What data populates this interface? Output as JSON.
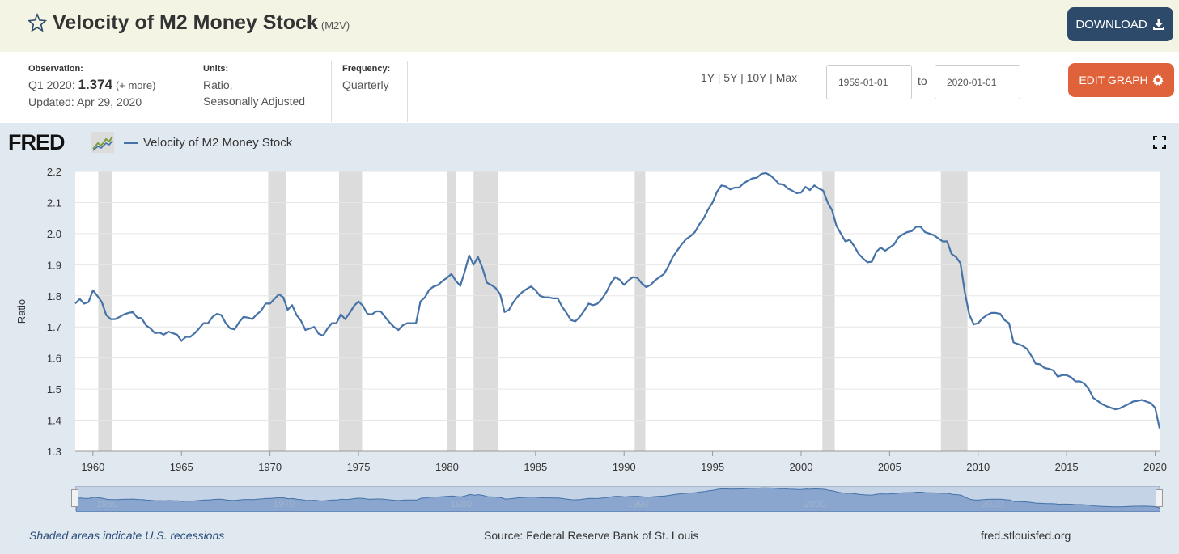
{
  "header": {
    "title": "Velocity of M2 Money Stock",
    "code": "(M2V)",
    "download_label": "DOWNLOAD"
  },
  "meta": {
    "observation_label": "Observation:",
    "observation_period": "Q1 2020:",
    "observation_value": "1.374",
    "observation_more": "(+ more)",
    "updated": "Updated: Apr 29, 2020",
    "units_label": "Units:",
    "units_line1": "Ratio,",
    "units_line2": "Seasonally Adjusted",
    "frequency_label": "Frequency:",
    "frequency_value": "Quarterly"
  },
  "range": {
    "links": [
      "1Y",
      "5Y",
      "10Y",
      "Max"
    ],
    "separator": "|",
    "from": "1959-01-01",
    "to_label": "to",
    "to": "2020-01-01",
    "edit_label": "EDIT GRAPH"
  },
  "legend": {
    "logo": "FRED",
    "series": "Velocity of M2 Money Stock"
  },
  "footer": {
    "note": "Shaded areas indicate U.S. recessions",
    "source": "Source: Federal Reserve Bank of St. Louis",
    "url": "fred.stlouisfed.org"
  },
  "colors": {
    "line": "#4572a7",
    "recession": "#dcdcdc",
    "download": "#2d4a6b",
    "edit": "#e0623a"
  },
  "chart_data": {
    "type": "line",
    "ylabel": "Ratio",
    "xlim": [
      1959,
      2020.25
    ],
    "ylim": [
      1.3,
      2.2
    ],
    "yticks": [
      1.3,
      1.4,
      1.5,
      1.6,
      1.7,
      1.8,
      1.9,
      2.0,
      2.1,
      2.2
    ],
    "xticks": [
      1960,
      1965,
      1970,
      1975,
      1980,
      1985,
      1990,
      1995,
      2000,
      2005,
      2010,
      2015,
      2020
    ],
    "recessions": [
      [
        1960.3,
        1961.1
      ],
      [
        1969.9,
        1970.9
      ],
      [
        1973.9,
        1975.2
      ],
      [
        1980.0,
        1980.5
      ],
      [
        1981.5,
        1982.9
      ],
      [
        1990.6,
        1991.2
      ],
      [
        2001.2,
        2001.9
      ],
      [
        2007.9,
        2009.4
      ]
    ],
    "series": [
      {
        "name": "Velocity of M2 Money Stock",
        "points": [
          [
            1959.0,
            1.775
          ],
          [
            1959.25,
            1.79
          ],
          [
            1959.5,
            1.775
          ],
          [
            1959.75,
            1.78
          ],
          [
            1960.0,
            1.818
          ],
          [
            1960.25,
            1.8
          ],
          [
            1960.5,
            1.78
          ],
          [
            1960.75,
            1.738
          ],
          [
            1961.0,
            1.725
          ],
          [
            1961.25,
            1.725
          ],
          [
            1961.5,
            1.732
          ],
          [
            1961.75,
            1.74
          ],
          [
            1962.0,
            1.745
          ],
          [
            1962.25,
            1.748
          ],
          [
            1962.5,
            1.73
          ],
          [
            1962.75,
            1.728
          ],
          [
            1963.0,
            1.705
          ],
          [
            1963.25,
            1.695
          ],
          [
            1963.5,
            1.68
          ],
          [
            1963.75,
            1.682
          ],
          [
            1964.0,
            1.675
          ],
          [
            1964.25,
            1.685
          ],
          [
            1964.5,
            1.68
          ],
          [
            1964.75,
            1.675
          ],
          [
            1965.0,
            1.655
          ],
          [
            1965.25,
            1.668
          ],
          [
            1965.5,
            1.668
          ],
          [
            1965.75,
            1.68
          ],
          [
            1966.0,
            1.695
          ],
          [
            1966.25,
            1.712
          ],
          [
            1966.5,
            1.712
          ],
          [
            1966.75,
            1.732
          ],
          [
            1967.0,
            1.742
          ],
          [
            1967.25,
            1.738
          ],
          [
            1967.5,
            1.712
          ],
          [
            1967.75,
            1.695
          ],
          [
            1968.0,
            1.692
          ],
          [
            1968.25,
            1.715
          ],
          [
            1968.5,
            1.732
          ],
          [
            1968.75,
            1.73
          ],
          [
            1969.0,
            1.725
          ],
          [
            1969.25,
            1.74
          ],
          [
            1969.5,
            1.752
          ],
          [
            1969.75,
            1.775
          ],
          [
            1970.0,
            1.775
          ],
          [
            1970.25,
            1.79
          ],
          [
            1970.5,
            1.805
          ],
          [
            1970.75,
            1.795
          ],
          [
            1971.0,
            1.755
          ],
          [
            1971.25,
            1.77
          ],
          [
            1971.5,
            1.738
          ],
          [
            1971.75,
            1.72
          ],
          [
            1972.0,
            1.69
          ],
          [
            1972.25,
            1.695
          ],
          [
            1972.5,
            1.7
          ],
          [
            1972.75,
            1.678
          ],
          [
            1973.0,
            1.672
          ],
          [
            1973.25,
            1.695
          ],
          [
            1973.5,
            1.712
          ],
          [
            1973.75,
            1.712
          ],
          [
            1974.0,
            1.74
          ],
          [
            1974.25,
            1.725
          ],
          [
            1974.5,
            1.745
          ],
          [
            1974.75,
            1.768
          ],
          [
            1975.0,
            1.782
          ],
          [
            1975.25,
            1.768
          ],
          [
            1975.5,
            1.742
          ],
          [
            1975.75,
            1.74
          ],
          [
            1976.0,
            1.75
          ],
          [
            1976.25,
            1.75
          ],
          [
            1976.5,
            1.732
          ],
          [
            1976.75,
            1.715
          ],
          [
            1977.0,
            1.7
          ],
          [
            1977.25,
            1.69
          ],
          [
            1977.5,
            1.705
          ],
          [
            1977.75,
            1.712
          ],
          [
            1978.0,
            1.712
          ],
          [
            1978.25,
            1.712
          ],
          [
            1978.5,
            1.782
          ],
          [
            1978.75,
            1.795
          ],
          [
            1979.0,
            1.82
          ],
          [
            1979.25,
            1.83
          ],
          [
            1979.5,
            1.835
          ],
          [
            1979.75,
            1.848
          ],
          [
            1980.0,
            1.858
          ],
          [
            1980.25,
            1.87
          ],
          [
            1980.5,
            1.848
          ],
          [
            1980.75,
            1.832
          ],
          [
            1981.0,
            1.878
          ],
          [
            1981.25,
            1.93
          ],
          [
            1981.5,
            1.9
          ],
          [
            1981.75,
            1.925
          ],
          [
            1982.0,
            1.89
          ],
          [
            1982.25,
            1.842
          ],
          [
            1982.5,
            1.835
          ],
          [
            1982.75,
            1.825
          ],
          [
            1983.0,
            1.805
          ],
          [
            1983.25,
            1.748
          ],
          [
            1983.5,
            1.755
          ],
          [
            1983.75,
            1.78
          ],
          [
            1984.0,
            1.798
          ],
          [
            1984.25,
            1.812
          ],
          [
            1984.5,
            1.822
          ],
          [
            1984.75,
            1.83
          ],
          [
            1985.0,
            1.818
          ],
          [
            1985.25,
            1.8
          ],
          [
            1985.5,
            1.795
          ],
          [
            1985.75,
            1.795
          ],
          [
            1986.0,
            1.792
          ],
          [
            1986.25,
            1.792
          ],
          [
            1986.5,
            1.765
          ],
          [
            1986.75,
            1.745
          ],
          [
            1987.0,
            1.722
          ],
          [
            1987.25,
            1.718
          ],
          [
            1987.5,
            1.732
          ],
          [
            1987.75,
            1.752
          ],
          [
            1988.0,
            1.775
          ],
          [
            1988.25,
            1.77
          ],
          [
            1988.5,
            1.775
          ],
          [
            1988.75,
            1.79
          ],
          [
            1989.0,
            1.812
          ],
          [
            1989.25,
            1.84
          ],
          [
            1989.5,
            1.86
          ],
          [
            1989.75,
            1.852
          ],
          [
            1990.0,
            1.835
          ],
          [
            1990.25,
            1.85
          ],
          [
            1990.5,
            1.86
          ],
          [
            1990.75,
            1.858
          ],
          [
            1991.0,
            1.84
          ],
          [
            1991.25,
            1.828
          ],
          [
            1991.5,
            1.835
          ],
          [
            1991.75,
            1.85
          ],
          [
            1992.0,
            1.86
          ],
          [
            1992.25,
            1.87
          ],
          [
            1992.5,
            1.895
          ],
          [
            1992.75,
            1.925
          ],
          [
            1993.0,
            1.945
          ],
          [
            1993.25,
            1.965
          ],
          [
            1993.5,
            1.982
          ],
          [
            1993.75,
            1.992
          ],
          [
            1994.0,
            2.005
          ],
          [
            1994.25,
            2.03
          ],
          [
            1994.5,
            2.05
          ],
          [
            1994.75,
            2.078
          ],
          [
            1995.0,
            2.1
          ],
          [
            1995.25,
            2.135
          ],
          [
            1995.5,
            2.155
          ],
          [
            1995.75,
            2.152
          ],
          [
            1996.0,
            2.142
          ],
          [
            1996.25,
            2.148
          ],
          [
            1996.5,
            2.148
          ],
          [
            1996.75,
            2.162
          ],
          [
            1997.0,
            2.17
          ],
          [
            1997.25,
            2.178
          ],
          [
            1997.5,
            2.18
          ],
          [
            1997.75,
            2.192
          ],
          [
            1998.0,
            2.195
          ],
          [
            1998.25,
            2.188
          ],
          [
            1998.5,
            2.175
          ],
          [
            1998.75,
            2.16
          ],
          [
            1999.0,
            2.158
          ],
          [
            1999.25,
            2.145
          ],
          [
            1999.5,
            2.138
          ],
          [
            1999.75,
            2.13
          ],
          [
            2000.0,
            2.132
          ],
          [
            2000.25,
            2.15
          ],
          [
            2000.5,
            2.14
          ],
          [
            2000.75,
            2.155
          ],
          [
            2001.0,
            2.145
          ],
          [
            2001.25,
            2.138
          ],
          [
            2001.5,
            2.1
          ],
          [
            2001.75,
            2.075
          ],
          [
            2002.0,
            2.025
          ],
          [
            2002.25,
            2.0
          ],
          [
            2002.5,
            1.975
          ],
          [
            2002.75,
            1.98
          ],
          [
            2003.0,
            1.96
          ],
          [
            2003.25,
            1.935
          ],
          [
            2003.5,
            1.92
          ],
          [
            2003.75,
            1.908
          ],
          [
            2004.0,
            1.91
          ],
          [
            2004.25,
            1.942
          ],
          [
            2004.5,
            1.955
          ],
          [
            2004.75,
            1.945
          ],
          [
            2005.0,
            1.955
          ],
          [
            2005.25,
            1.965
          ],
          [
            2005.5,
            1.988
          ],
          [
            2005.75,
            1.998
          ],
          [
            2006.0,
            2.005
          ],
          [
            2006.25,
            2.008
          ],
          [
            2006.5,
            2.022
          ],
          [
            2006.75,
            2.022
          ],
          [
            2007.0,
            2.005
          ],
          [
            2007.25,
            2.0
          ],
          [
            2007.5,
            1.995
          ],
          [
            2007.75,
            1.985
          ],
          [
            2008.0,
            1.975
          ],
          [
            2008.25,
            1.975
          ],
          [
            2008.5,
            1.935
          ],
          [
            2008.75,
            1.925
          ],
          [
            2009.0,
            1.905
          ],
          [
            2009.25,
            1.812
          ],
          [
            2009.5,
            1.74
          ],
          [
            2009.75,
            1.708
          ],
          [
            2010.0,
            1.712
          ],
          [
            2010.25,
            1.728
          ],
          [
            2010.5,
            1.738
          ],
          [
            2010.75,
            1.745
          ],
          [
            2011.0,
            1.745
          ],
          [
            2011.25,
            1.742
          ],
          [
            2011.5,
            1.722
          ],
          [
            2011.75,
            1.712
          ],
          [
            2012.0,
            1.65
          ],
          [
            2012.25,
            1.645
          ],
          [
            2012.5,
            1.64
          ],
          [
            2012.75,
            1.63
          ],
          [
            2013.0,
            1.608
          ],
          [
            2013.25,
            1.582
          ],
          [
            2013.5,
            1.58
          ],
          [
            2013.75,
            1.568
          ],
          [
            2014.0,
            1.565
          ],
          [
            2014.25,
            1.56
          ],
          [
            2014.5,
            1.54
          ],
          [
            2014.75,
            1.545
          ],
          [
            2015.0,
            1.545
          ],
          [
            2015.25,
            1.538
          ],
          [
            2015.5,
            1.525
          ],
          [
            2015.75,
            1.525
          ],
          [
            2016.0,
            1.518
          ],
          [
            2016.25,
            1.5
          ],
          [
            2016.5,
            1.472
          ],
          [
            2016.75,
            1.462
          ],
          [
            2017.0,
            1.452
          ],
          [
            2017.25,
            1.445
          ],
          [
            2017.5,
            1.44
          ],
          [
            2017.75,
            1.435
          ],
          [
            2018.0,
            1.438
          ],
          [
            2018.25,
            1.445
          ],
          [
            2018.5,
            1.452
          ],
          [
            2018.75,
            1.46
          ],
          [
            2019.0,
            1.462
          ],
          [
            2019.25,
            1.465
          ],
          [
            2019.5,
            1.46
          ],
          [
            2019.75,
            1.455
          ],
          [
            2020.0,
            1.44
          ],
          [
            2020.25,
            1.374
          ]
        ]
      }
    ]
  }
}
